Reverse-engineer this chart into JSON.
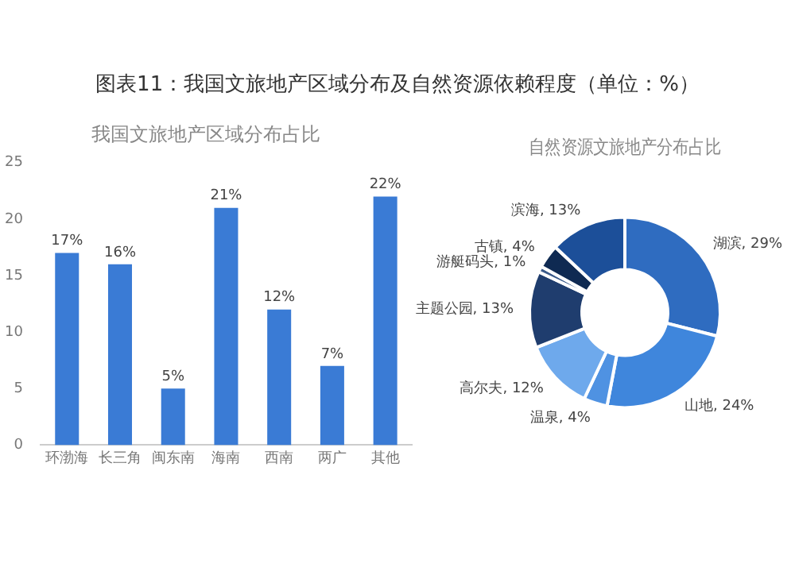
{
  "chart_data": [
    {
      "type": "bar",
      "title": "我国文旅地产区域分布占比",
      "annotations": [
        "图表11：我国文旅地产区域分布及自然资源依赖程度（单位：%）"
      ],
      "categories": [
        "环渤海",
        "长三角",
        "闽东南",
        "海南",
        "西南",
        "两广",
        "其他"
      ],
      "values": [
        17,
        16,
        5,
        21,
        12,
        7,
        22
      ],
      "value_labels": [
        "17%",
        "16%",
        "5%",
        "21%",
        "12%",
        "7%",
        "22%"
      ],
      "color": "#3a7bd5",
      "ylim": [
        0,
        25
      ],
      "yticks": [
        0,
        5,
        10,
        15,
        20,
        25
      ],
      "grid": false,
      "legend": false
    },
    {
      "type": "donut",
      "title": "自然资源文旅地产分布占比",
      "categories": [
        "湖滨",
        "山地",
        "温泉",
        "高尔夫",
        "主题公园",
        "游艇码头",
        "古镇",
        "滨海"
      ],
      "values": [
        29,
        24,
        4,
        12,
        13,
        1,
        4,
        13
      ],
      "value_labels": [
        "29%",
        "24%",
        "4%",
        "12%",
        "13%",
        "1%",
        "4%",
        "13%"
      ],
      "colors": [
        "#2f6cc0",
        "#3f86dc",
        "#4f92e2",
        "#6ea9ec",
        "#1f3d6e",
        "#3a5a8a",
        "#0f2a52",
        "#1c4f99"
      ],
      "legend": false
    }
  ]
}
